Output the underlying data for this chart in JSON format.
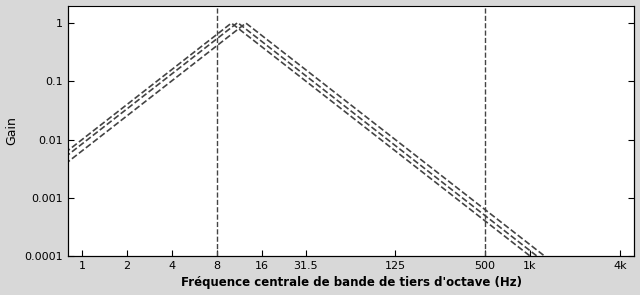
{
  "xlabel": "Fréquence centrale de bande de tiers d'octave (Hz)",
  "ylabel": "Gain",
  "xtick_positions": [
    1,
    2,
    4,
    8,
    16,
    31.5,
    125,
    500,
    1000,
    4000
  ],
  "xtick_labels": [
    "1",
    "2",
    "4",
    "8",
    "16",
    "31.5",
    "125",
    "500",
    "1k",
    "4k"
  ],
  "ytick_positions": [
    0.0001,
    0.001,
    0.01,
    0.1,
    1
  ],
  "ytick_labels": [
    "0.0001",
    "0.001",
    "0.01",
    "0.1",
    "1"
  ],
  "xlim": [
    0.8,
    5000
  ],
  "ylim": [
    0.0001,
    2.0
  ],
  "dashed_vertical_x1": 8,
  "dashed_vertical_x2": 500,
  "curve_color": "#444444",
  "background_color": "#d8d8d8",
  "plot_bg_color": "#ffffff",
  "curves": [
    {
      "peak": 10.0,
      "low_slope": 2.0,
      "high_slope": 2.0,
      "peak_gain": 1.0
    },
    {
      "peak": 12.5,
      "low_slope": 2.0,
      "high_slope": 2.0,
      "peak_gain": 1.0
    },
    {
      "peak": 11.0,
      "low_slope": 2.0,
      "high_slope": 2.0,
      "peak_gain": 1.02
    }
  ],
  "xlabel_fontsize": 8.5,
  "ylabel_fontsize": 9,
  "tick_fontsize": 8
}
